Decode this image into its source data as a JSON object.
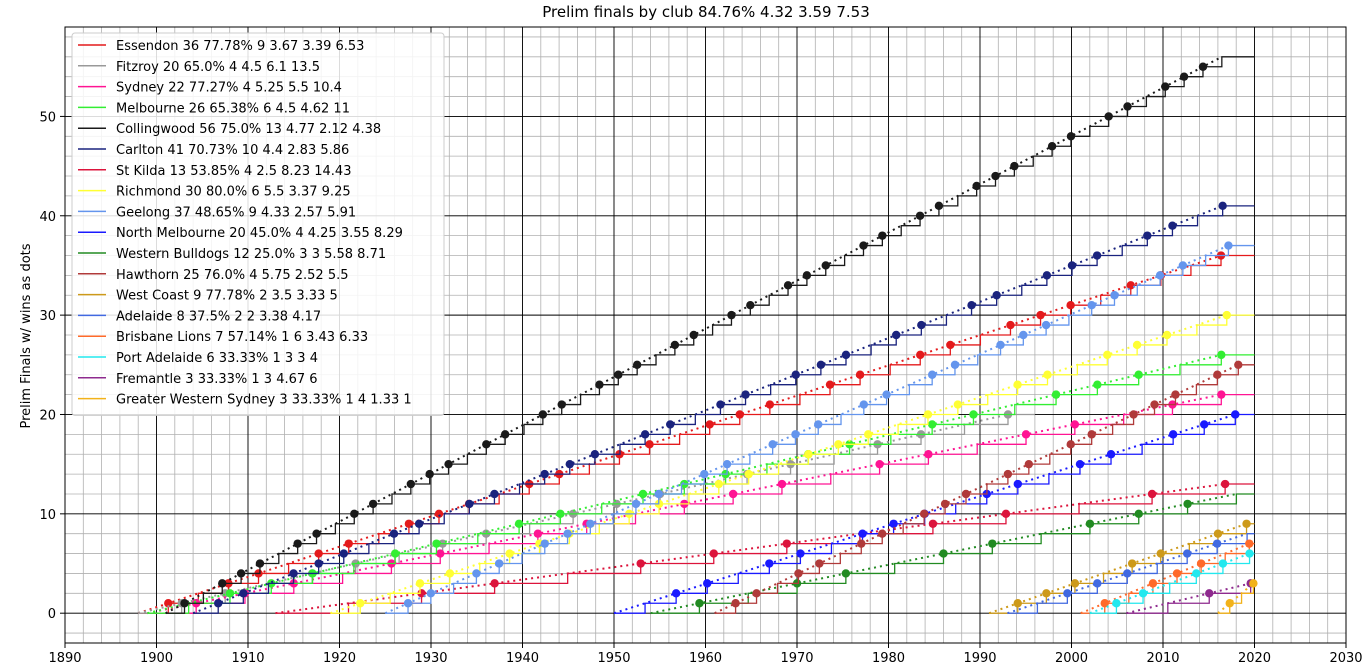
{
  "chart_data": {
    "type": "line",
    "title": "Prelim finals by club 84.76% 4.32 3.59 7.53",
    "xlabel": "",
    "ylabel": "Prelim Finals w/ wins as dots",
    "xlim": [
      1890,
      2030
    ],
    "ylim": [
      -3,
      59
    ],
    "x_ticks": [
      1890,
      1900,
      1910,
      1920,
      1930,
      1940,
      1950,
      1960,
      1970,
      1980,
      1990,
      2000,
      2010,
      2020,
      2030
    ],
    "y_ticks": [
      0,
      10,
      20,
      30,
      40,
      50
    ],
    "grid": true,
    "legend_position": "top-left",
    "series": [
      {
        "name": "Essendon 36 77.78% 9 3.67 3.39 6.53",
        "color": "#e41a1c",
        "start": 1898,
        "count": 36,
        "end": 2020
      },
      {
        "name": "Fitzroy 20 65.0% 4 4.5 6.1 13.5",
        "color": "#999999",
        "start": 1898,
        "count": 20,
        "end": 1996
      },
      {
        "name": "Sydney 22 77.27% 4 5.25 5.5 10.4",
        "color": "#ff1493",
        "start": 1899,
        "count": 22,
        "end": 2020
      },
      {
        "name": "Melbourne 26 65.38% 6 4.5 4.62 11",
        "color": "#32ee32",
        "start": 1899,
        "count": 26,
        "end": 2020
      },
      {
        "name": "Collingwood 56 75.0% 13 4.77 2.12 4.38",
        "color": "#1a1a1a",
        "start": 1901,
        "count": 56,
        "end": 2020
      },
      {
        "name": "Carlton 41 70.73% 10 4.4 2.83 5.86",
        "color": "#1a237e",
        "start": 1904,
        "count": 41,
        "end": 2020
      },
      {
        "name": "St Kilda 13 53.85% 4 2.5 8.23 14.43",
        "color": "#dc143c",
        "start": 1913,
        "count": 13,
        "end": 2020
      },
      {
        "name": "Richmond 30 80.0% 6 5.5 3.37 9.25",
        "color": "#ffff33",
        "start": 1919,
        "count": 30,
        "end": 2020
      },
      {
        "name": "Geelong 37 48.65% 9 4.33 2.57 5.91",
        "color": "#6495ed",
        "start": 1925,
        "count": 37,
        "end": 2020
      },
      {
        "name": "North Melbourne 20 45.0% 4 4.25 3.55 8.29",
        "color": "#1a1aff",
        "start": 1950,
        "count": 20,
        "end": 2020
      },
      {
        "name": "Western Bulldogs 12 25.0% 3 3 5.58 8.71",
        "color": "#228b22",
        "start": 1954,
        "count": 12,
        "end": 2020
      },
      {
        "name": "Hawthorn 25 76.0% 4 5.75 2.52 5.5",
        "color": "#b03a3a",
        "start": 1961,
        "count": 25,
        "end": 2020
      },
      {
        "name": "West Coast 9 77.78% 2 3.5 3.33 5",
        "color": "#cd9a1a",
        "start": 1991,
        "count": 9,
        "end": 2020
      },
      {
        "name": "Adelaide 8 37.5% 2 2 3.38 4.17",
        "color": "#4169e1",
        "start": 1993,
        "count": 8,
        "end": 2020
      },
      {
        "name": "Brisbane Lions 7 57.14% 1 6 3.43 6.33",
        "color": "#ff6a2a",
        "start": 2001,
        "count": 7,
        "end": 2020
      },
      {
        "name": "Port Adelaide 6 33.33% 1 3 3 4",
        "color": "#22e8ee",
        "start": 2002,
        "count": 6,
        "end": 2020
      },
      {
        "name": "Fremantle 3 33.33% 1 3 4.67 6",
        "color": "#8e2a8e",
        "start": 2006,
        "count": 3,
        "end": 2020
      },
      {
        "name": "Greater Western Sydney 3 33.33% 1 4 1.33 1",
        "color": "#f2b21a",
        "start": 2016,
        "count": 3,
        "end": 2020
      }
    ]
  }
}
